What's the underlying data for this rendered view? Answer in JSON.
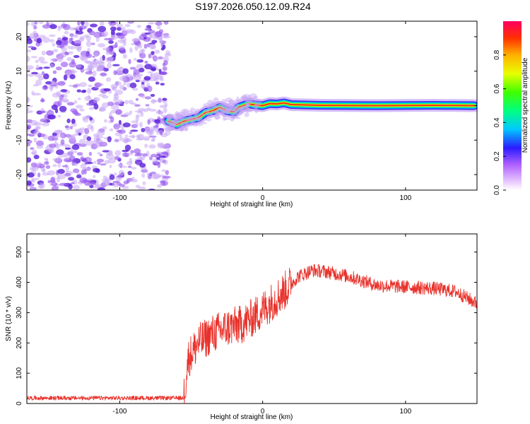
{
  "title": "S197.2026.050.12.09.R24",
  "chart_data": [
    {
      "type": "heatmap",
      "name": "spectrum",
      "xlabel": "Height of straight line (km)",
      "ylabel": "Frequency (Hz)",
      "xlim": [
        -165,
        150
      ],
      "ylim": [
        -24.5,
        24.5
      ],
      "xticks": [
        -100,
        0,
        100
      ],
      "yticks": [
        -20,
        -10,
        0,
        10,
        20
      ],
      "noise_region_x": [
        -165,
        -66
      ],
      "signal_centerline": [
        {
          "x": -66,
          "y": -4.5
        },
        {
          "x": -60,
          "y": -5.5
        },
        {
          "x": -55,
          "y": -4.5
        },
        {
          "x": -50,
          "y": -4.0
        },
        {
          "x": -45,
          "y": -3.5
        },
        {
          "x": -40,
          "y": -2.0
        },
        {
          "x": -35,
          "y": -1.5
        },
        {
          "x": -30,
          "y": -0.5
        },
        {
          "x": -25,
          "y": -1.5
        },
        {
          "x": -20,
          "y": -1.8
        },
        {
          "x": -17,
          "y": -0.5
        },
        {
          "x": -10,
          "y": 0.5
        },
        {
          "x": -5,
          "y": 0.2
        },
        {
          "x": 0,
          "y": 0.0
        },
        {
          "x": 5,
          "y": 0.6
        },
        {
          "x": 10,
          "y": 0.5
        },
        {
          "x": 15,
          "y": 0.8
        },
        {
          "x": 20,
          "y": 0.3
        },
        {
          "x": 40,
          "y": 0.1
        },
        {
          "x": 80,
          "y": 0.0
        },
        {
          "x": 120,
          "y": 0.1
        },
        {
          "x": 148,
          "y": 0.0
        }
      ],
      "colorbar": {
        "label": "Normalized spectral amplitude",
        "ticks": [
          "0.0",
          "0.2",
          "0.4",
          "0.6",
          "0.8"
        ],
        "range": [
          0,
          1
        ]
      }
    },
    {
      "type": "line",
      "name": "snr",
      "xlabel": "Height of straight line (km)",
      "ylabel": "SNR (10 * v/v)",
      "xlim": [
        -165,
        150
      ],
      "ylim": [
        0,
        560
      ],
      "xticks": [
        -100,
        0,
        100
      ],
      "yticks": [
        0,
        100,
        200,
        300,
        400,
        500
      ],
      "color": "#e8312a",
      "envelope": [
        {
          "x": -165,
          "y": 15
        },
        {
          "x": -60,
          "y": 18
        },
        {
          "x": -55,
          "y": 30
        },
        {
          "x": -52,
          "y": 150
        },
        {
          "x": -45,
          "y": 200
        },
        {
          "x": -35,
          "y": 230
        },
        {
          "x": -25,
          "y": 250
        },
        {
          "x": -15,
          "y": 260
        },
        {
          "x": -5,
          "y": 290
        },
        {
          "x": 5,
          "y": 330
        },
        {
          "x": 15,
          "y": 370
        },
        {
          "x": 25,
          "y": 420
        },
        {
          "x": 35,
          "y": 440
        },
        {
          "x": 45,
          "y": 435
        },
        {
          "x": 60,
          "y": 420
        },
        {
          "x": 80,
          "y": 390
        },
        {
          "x": 100,
          "y": 385
        },
        {
          "x": 120,
          "y": 380
        },
        {
          "x": 135,
          "y": 370
        },
        {
          "x": 150,
          "y": 330
        }
      ]
    }
  ]
}
